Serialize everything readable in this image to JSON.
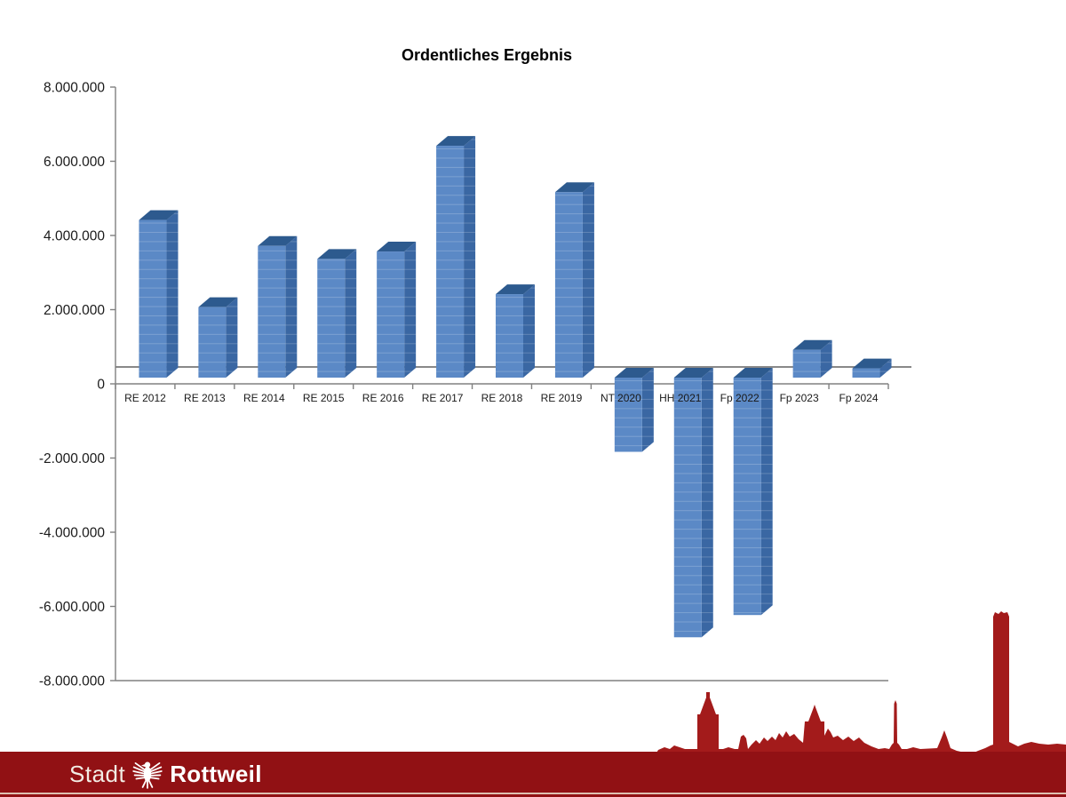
{
  "chart_data": {
    "type": "bar",
    "title": "Ordentliches Ergebnis",
    "categories": [
      "RE 2012",
      "RE 2013",
      "RE 2014",
      "RE 2015",
      "RE 2016",
      "RE 2017",
      "RE 2018",
      "RE 2019",
      "NT 2020",
      "HH 2021",
      "Fp 2022",
      "Fp 2023",
      "Fp 2024"
    ],
    "values": [
      4250000,
      1900000,
      3550000,
      3200000,
      3400000,
      6250000,
      2250000,
      5000000,
      -2000000,
      -7000000,
      -6400000,
      750000,
      250000
    ],
    "ylim": [
      -8000000,
      8000000
    ],
    "ytick_step": 2000000,
    "ytick_labels": [
      "8.000.000",
      "6.000.000",
      "4.000.000",
      "2.000.000",
      "0",
      "-2.000.000",
      "-4.000.000",
      "-6.000.000",
      "-8.000.000"
    ],
    "xlabel": "",
    "ylabel": "",
    "legend": "none",
    "grid": "zero-line-only",
    "bar_style": "3d",
    "colors": {
      "bar_front": "#5b89c6",
      "bar_side": "#3a67a3",
      "bar_top": "#2d5a8e",
      "axis_line": "#808080",
      "zero_back_line": "#777777"
    }
  },
  "footer": {
    "brand_prefix": "Stadt",
    "brand_name": "Rottweil",
    "eagle_icon": "rottweil-eagle",
    "bar_color": "#911114",
    "skyline_color": "#a31b1b",
    "accent_line_color": "#eadfcc"
  }
}
